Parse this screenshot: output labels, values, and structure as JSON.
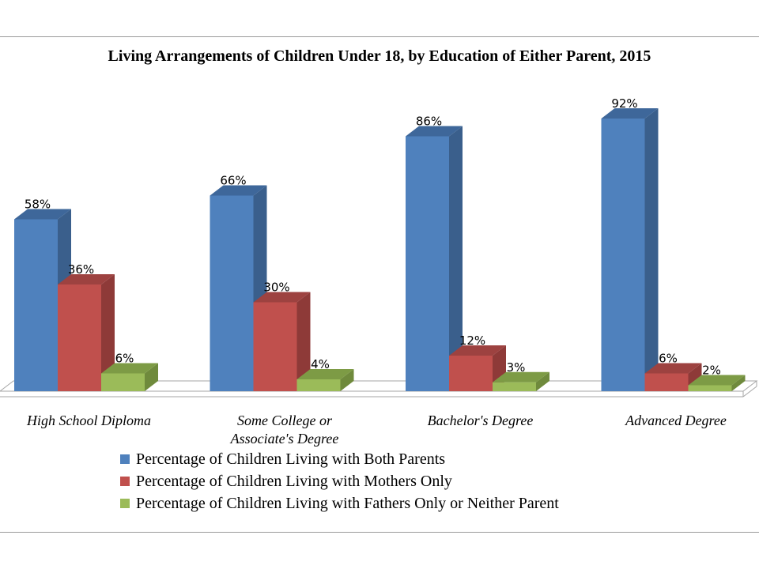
{
  "chart_data": {
    "type": "bar",
    "title": "Living Arrangements of Children Under 18, by Education of Either Parent, 2015",
    "categories": [
      [
        "High School Diploma"
      ],
      [
        "Some College or",
        "Associate's Degree"
      ],
      [
        "Bachelor's Degree"
      ],
      [
        "Advanced Degree"
      ]
    ],
    "series": [
      {
        "name": "Percentage of Children Living with Both Parents",
        "values": [
          58,
          66,
          86,
          92
        ],
        "color": "#4f81bd",
        "side": "#3a5f8c",
        "top": "#3e679a"
      },
      {
        "name": "Percentage of Children Living with Mothers Only",
        "values": [
          36,
          30,
          12,
          6
        ],
        "color": "#c0504d",
        "side": "#8e3a38",
        "top": "#9d4240"
      },
      {
        "name": "Percentage of Children Living with Fathers Only or Neither Parent",
        "values": [
          6,
          4,
          3,
          2
        ],
        "color": "#9bbb59",
        "side": "#6f8a3c",
        "top": "#7d9b45"
      }
    ],
    "value_format": "%",
    "ylim": [
      0,
      100
    ],
    "grid": false,
    "legend_position": "bottom",
    "projection": "3d"
  }
}
